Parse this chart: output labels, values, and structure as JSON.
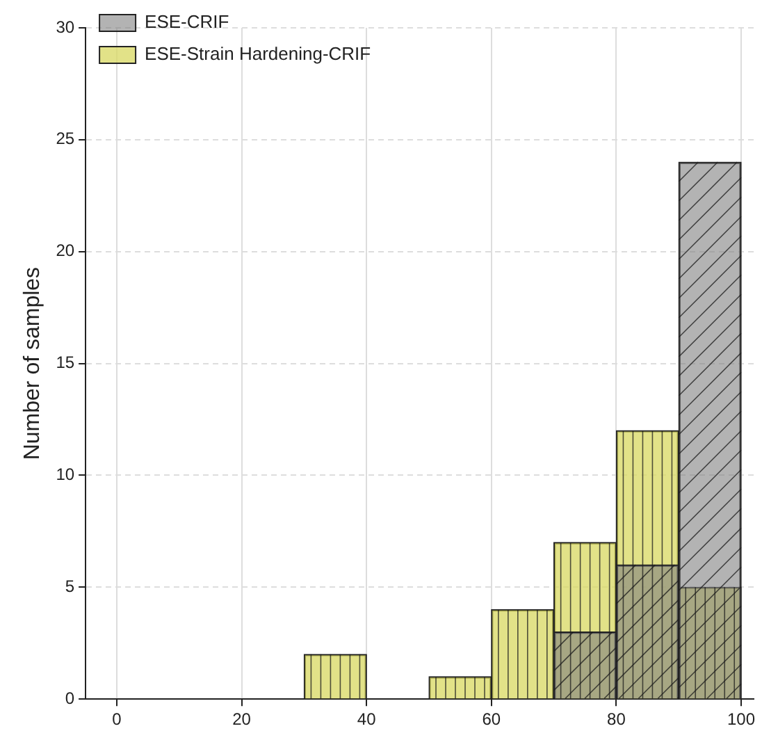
{
  "chart_data": {
    "type": "histogram",
    "ylabel": "Number of samples",
    "bins": [
      0,
      10,
      20,
      30,
      40,
      50,
      60,
      70,
      80,
      90,
      100
    ],
    "series": [
      {
        "name": "ESE-CRIF",
        "color": "#808080",
        "values": [
          0,
          0,
          0,
          0,
          0,
          0,
          0,
          3,
          6,
          24
        ]
      },
      {
        "name": "ESE-Strain Hardening-CRIF",
        "color": "#d8d860",
        "values": [
          0,
          0,
          0,
          2,
          0,
          1,
          4,
          7,
          12,
          5
        ]
      }
    ],
    "xlim": [
      -5,
      102
    ],
    "xticks": [
      0,
      20,
      40,
      60,
      80,
      100
    ],
    "ylim": [
      0,
      30
    ],
    "yticks": [
      0,
      5,
      10,
      15,
      20,
      25,
      30
    ],
    "grid": true,
    "legend": "top left"
  }
}
